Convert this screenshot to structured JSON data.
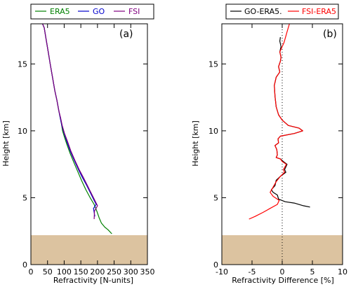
{
  "colors": {
    "era5": "#008000",
    "go": "#0000cc",
    "fsi": "#800080",
    "go_minus_era5": "#000000",
    "fsi_minus_era5": "#ff0000",
    "shade": "#dcc3a0"
  },
  "chart_data": [
    {
      "type": "line",
      "panel_label": "(a)",
      "xlabel": "Refractivity [N-units]",
      "ylabel": "Height [km]",
      "xlim": [
        0,
        350
      ],
      "ylim": [
        0,
        18
      ],
      "xticks": [
        "0",
        "50",
        "100",
        "150",
        "200",
        "250",
        "300",
        "350"
      ],
      "yticks": [
        "0",
        "5",
        "10",
        "15"
      ],
      "xtick_values": [
        0,
        50,
        100,
        150,
        200,
        250,
        300,
        350
      ],
      "ytick_values": [
        0,
        5,
        10,
        15
      ],
      "shaded_region": [
        0,
        2.2
      ],
      "legend": {
        "position": "top",
        "entries": [
          "ERA5",
          "GO",
          "FSI"
        ]
      },
      "series": [
        {
          "name": "ERA5",
          "color_key": "era5",
          "x": [
            243,
            232,
            222,
            212,
            205,
            198,
            190,
            178,
            165,
            152,
            140,
            128,
            118,
            108,
            100,
            95,
            92,
            88,
            84,
            78,
            72,
            65,
            58,
            52,
            46,
            40,
            35
          ],
          "y": [
            2.3,
            2.6,
            2.8,
            3.1,
            3.5,
            4.0,
            4.5,
            5.0,
            5.6,
            6.3,
            7.0,
            7.7,
            8.3,
            9.0,
            9.6,
            10.0,
            10.5,
            11.0,
            11.5,
            12.3,
            13.0,
            14.0,
            15.0,
            15.9,
            16.8,
            17.7,
            18.0
          ]
        },
        {
          "name": "GO",
          "color_key": "go",
          "x": [
            192,
            188,
            196,
            190,
            180,
            168,
            155,
            143,
            130,
            118,
            108,
            100,
            93,
            88,
            84,
            78,
            72,
            65,
            58,
            52,
            46,
            40,
            35
          ],
          "y": [
            3.6,
            4.2,
            4.5,
            4.8,
            5.3,
            5.9,
            6.5,
            7.1,
            7.8,
            8.5,
            9.2,
            9.8,
            10.4,
            11.0,
            11.5,
            12.3,
            13.0,
            14.0,
            15.0,
            15.9,
            16.8,
            17.7,
            18.0
          ]
        },
        {
          "name": "FSI",
          "color_key": "fsi",
          "x": [
            190,
            191,
            200,
            192,
            182,
            170,
            158,
            145,
            132,
            120,
            110,
            101,
            94,
            89,
            84,
            78,
            72,
            65,
            58,
            52,
            46,
            40,
            35
          ],
          "y": [
            3.4,
            4.0,
            4.4,
            4.8,
            5.3,
            5.9,
            6.5,
            7.1,
            7.8,
            8.5,
            9.2,
            9.8,
            10.4,
            11.0,
            11.5,
            12.3,
            13.0,
            14.0,
            15.0,
            15.9,
            16.8,
            17.7,
            18.0
          ]
        }
      ]
    },
    {
      "type": "line",
      "panel_label": "(b)",
      "xlabel": "Refractivity Difference [%]",
      "ylabel": "Height [km]",
      "xlim": [
        -10,
        10
      ],
      "ylim": [
        0,
        18
      ],
      "xticks": [
        "-10",
        "-5",
        "0",
        "5",
        "10"
      ],
      "yticks": [
        "0",
        "5",
        "10",
        "15"
      ],
      "xtick_values": [
        -10,
        -5,
        0,
        5,
        10
      ],
      "ytick_values": [
        0,
        5,
        10,
        15
      ],
      "shaded_region": [
        0,
        2.2
      ],
      "zero_line": 0,
      "legend": {
        "position": "top",
        "entries": [
          "GO-ERA5.",
          "FSI-ERA5"
        ]
      },
      "series": [
        {
          "name": "GO-ERA5.",
          "color_key": "go_minus_era5",
          "x": [
            4.6,
            3.5,
            2.0,
            0.5,
            -0.6,
            -0.8,
            -1.5,
            -1.8,
            -1.2,
            -1.0,
            -0.3,
            0.6,
            0.4,
            0.8,
            0.2,
            -0.3,
            -1.0,
            -0.8,
            -0.9,
            -1.2,
            -0.6,
            -0.7,
            -0.3,
            2.0,
            3.4,
            2.8,
            1.0,
            0.0,
            -0.6,
            -1.0,
            -1.2,
            -1.3,
            -1.0,
            -0.4,
            -0.6,
            -0.3,
            -0.2,
            -0.4,
            -0.2,
            -0.4,
            -0.3
          ],
          "y": [
            4.3,
            4.4,
            4.6,
            4.7,
            4.9,
            5.2,
            5.4,
            5.6,
            5.9,
            6.3,
            6.6,
            6.9,
            7.1,
            7.5,
            7.7,
            7.9,
            8.0,
            8.2,
            8.6,
            8.9,
            9.1,
            9.4,
            9.6,
            9.8,
            10.0,
            10.2,
            10.4,
            10.8,
            11.2,
            11.8,
            12.6,
            13.4,
            14.0,
            14.4,
            14.8,
            15.2,
            15.5,
            15.9,
            16.3,
            16.7,
            17.0
          ]
        },
        {
          "name": "FSI-ERA5",
          "color_key": "fsi_minus_era5",
          "x": [
            -5.5,
            -4.5,
            -3.2,
            -2.0,
            -0.8,
            -0.5,
            -1.5,
            -2.0,
            -1.5,
            -1.0,
            -0.3,
            0.4,
            0.2,
            0.7,
            0.0,
            -0.3,
            -1.0,
            -0.8,
            -0.9,
            -1.2,
            -0.6,
            -0.7,
            -0.3,
            2.0,
            3.4,
            2.8,
            1.0,
            0.0,
            -0.6,
            -1.0,
            -1.2,
            -1.3,
            -1.0,
            -0.4,
            -0.6,
            -0.3,
            -0.2,
            -0.4,
            0.3,
            0.8,
            1.2
          ],
          "y": [
            3.4,
            3.6,
            3.9,
            4.2,
            4.5,
            4.8,
            5.1,
            5.4,
            5.8,
            6.2,
            6.6,
            6.9,
            7.1,
            7.5,
            7.7,
            7.9,
            8.0,
            8.2,
            8.6,
            8.9,
            9.1,
            9.4,
            9.6,
            9.8,
            10.0,
            10.2,
            10.4,
            10.8,
            11.2,
            11.8,
            12.6,
            13.4,
            14.0,
            14.4,
            14.8,
            15.2,
            15.5,
            15.9,
            16.6,
            17.4,
            18.0
          ]
        }
      ]
    }
  ]
}
